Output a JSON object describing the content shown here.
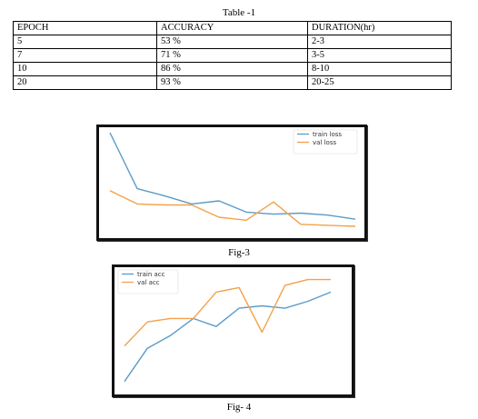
{
  "table": {
    "title": "Table -1",
    "headers": [
      "EPOCH",
      "ACCURACY",
      "DURATION(hr)"
    ],
    "rows": [
      [
        "5",
        "53 %",
        "2-3"
      ],
      [
        "7",
        "71 %",
        "3-5"
      ],
      [
        "10",
        "86 %",
        "8-10"
      ],
      [
        "20",
        "93 %",
        "20-25"
      ]
    ]
  },
  "figures": {
    "fig3_caption": "Fig-3",
    "fig4_caption": "Fig- 4"
  },
  "colors": {
    "train": "#5b9bc8",
    "val": "#f3a14a"
  },
  "chart_data": [
    {
      "type": "line",
      "title": "",
      "xlabel": "",
      "ylabel": "",
      "x": [
        0,
        1,
        2,
        3,
        4,
        5,
        6,
        7,
        8,
        9
      ],
      "ylim": [
        0,
        1
      ],
      "grid": false,
      "legend": "top-right",
      "series": [
        {
          "name": "train loss",
          "color": "#5b9bc8",
          "values": [
            1.0,
            0.45,
            0.38,
            0.3,
            0.33,
            0.22,
            0.2,
            0.21,
            0.19,
            0.15
          ]
        },
        {
          "name": "val loss",
          "color": "#f3a14a",
          "values": [
            0.43,
            0.3,
            0.29,
            0.29,
            0.17,
            0.14,
            0.32,
            0.1,
            0.09,
            0.08
          ]
        }
      ]
    },
    {
      "type": "line",
      "title": "",
      "xlabel": "",
      "ylabel": "",
      "x": [
        0,
        1,
        2,
        3,
        4,
        5,
        6,
        7,
        8,
        9
      ],
      "ylim": [
        0,
        1
      ],
      "grid": false,
      "legend": "top-left",
      "series": [
        {
          "name": "train acc",
          "color": "#5b9bc8",
          "values": [
            0.05,
            0.34,
            0.45,
            0.6,
            0.53,
            0.69,
            0.71,
            0.69,
            0.75,
            0.83
          ]
        },
        {
          "name": "val acc",
          "color": "#f3a14a",
          "values": [
            0.36,
            0.57,
            0.6,
            0.6,
            0.83,
            0.87,
            0.48,
            0.89,
            0.94,
            0.94
          ]
        }
      ]
    }
  ]
}
